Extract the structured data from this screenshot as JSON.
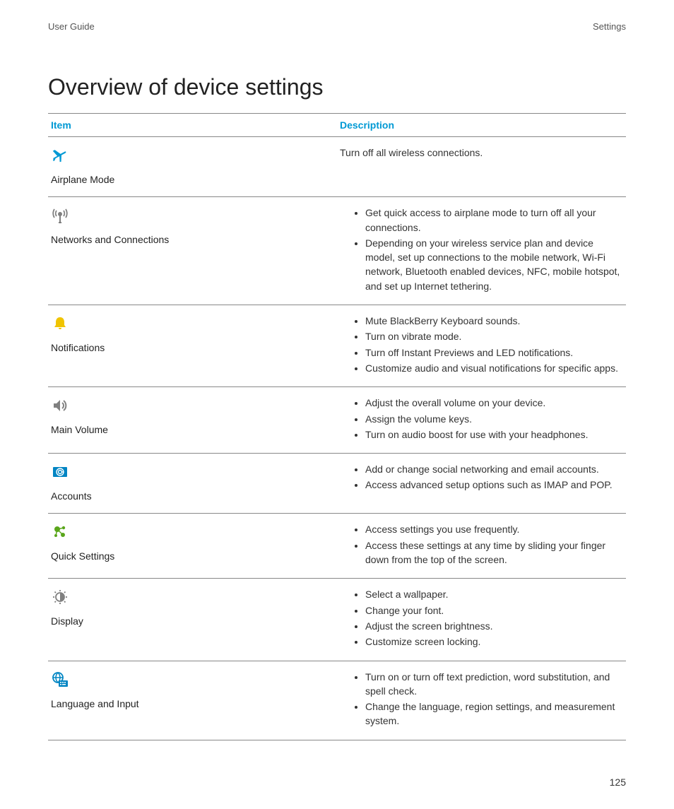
{
  "header": {
    "left": "User Guide",
    "right": "Settings"
  },
  "title": "Overview of device settings",
  "columns": {
    "item": "Item",
    "description": "Description"
  },
  "colors": {
    "accent": "#0099d4",
    "yellow": "#f0c400",
    "gray": "#808080",
    "green": "#5aa61b",
    "blue_icon": "#0085c3",
    "rule": "#888888",
    "text": "#333333"
  },
  "rows": [
    {
      "icon": "airplane-icon",
      "label": "Airplane Mode",
      "type": "text",
      "text": "Turn off all wireless connections."
    },
    {
      "icon": "antenna-icon",
      "label": "Networks and Connections",
      "type": "list",
      "items": [
        "Get quick access to airplane mode to turn off all your connections.",
        "Depending on your wireless service plan and device model, set up connections to the mobile network, Wi-Fi network, Bluetooth enabled devices, NFC, mobile hotspot, and set up Internet tethering."
      ]
    },
    {
      "icon": "bell-icon",
      "label": "Notifications",
      "type": "list",
      "items": [
        "Mute BlackBerry Keyboard sounds.",
        "Turn on vibrate mode.",
        "Turn off Instant Previews and LED notifications.",
        "Customize audio and visual notifications for specific apps."
      ]
    },
    {
      "icon": "volume-icon",
      "label": "Main Volume",
      "type": "list",
      "items": [
        "Adjust the overall volume on your device.",
        "Assign the volume keys.",
        "Turn on audio boost for use with your headphones."
      ]
    },
    {
      "icon": "accounts-icon",
      "label": "Accounts",
      "type": "list",
      "items": [
        "Add or change social networking and email accounts.",
        "Access advanced setup options such as IMAP and POP."
      ]
    },
    {
      "icon": "quick-settings-icon",
      "label": "Quick Settings",
      "type": "list",
      "items": [
        "Access settings you use frequently.",
        "Access these settings at any time by sliding your finger down from the top of the screen."
      ]
    },
    {
      "icon": "display-icon",
      "label": "Display",
      "type": "list",
      "items": [
        "Select a wallpaper.",
        "Change your font.",
        "Adjust the screen brightness.",
        "Customize screen locking."
      ]
    },
    {
      "icon": "language-icon",
      "label": "Language and Input",
      "type": "list",
      "items": [
        "Turn on or turn off text prediction, word substitution, and spell check.",
        "Change the language, region settings, and measurement system."
      ]
    }
  ],
  "page_number": "125"
}
